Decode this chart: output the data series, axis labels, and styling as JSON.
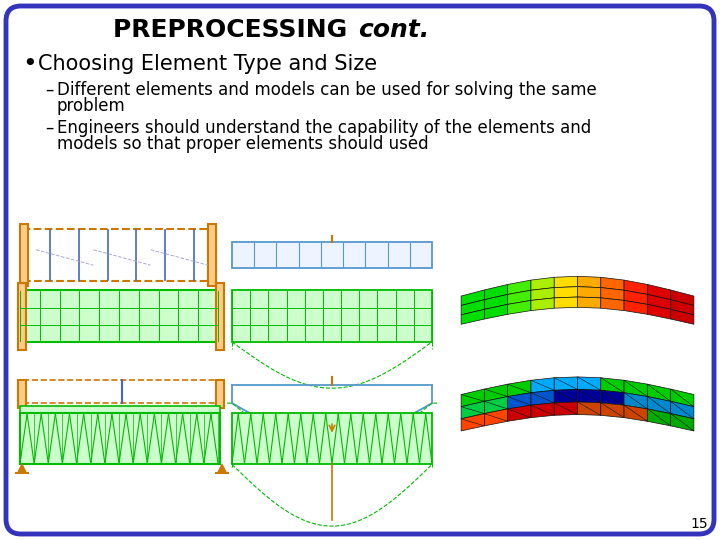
{
  "title_bold": "PREPROCESSING ",
  "title_italic": "cont.",
  "bullet_main": "Choosing Element Type and Size",
  "sub_bullet_1a": "Different elements and models can be used for solving the same",
  "sub_bullet_1b": "problem",
  "sub_bullet_2a": "Engineers should understand the capability of the elements and",
  "sub_bullet_2b": "models so that proper elements should used",
  "page_number": "15",
  "bg_color": "#ffffff",
  "border_color": "#3333bb",
  "title_fontsize": 18,
  "bullet_fontsize": 15,
  "sub_bullet_fontsize": 12,
  "page_num_fontsize": 10
}
